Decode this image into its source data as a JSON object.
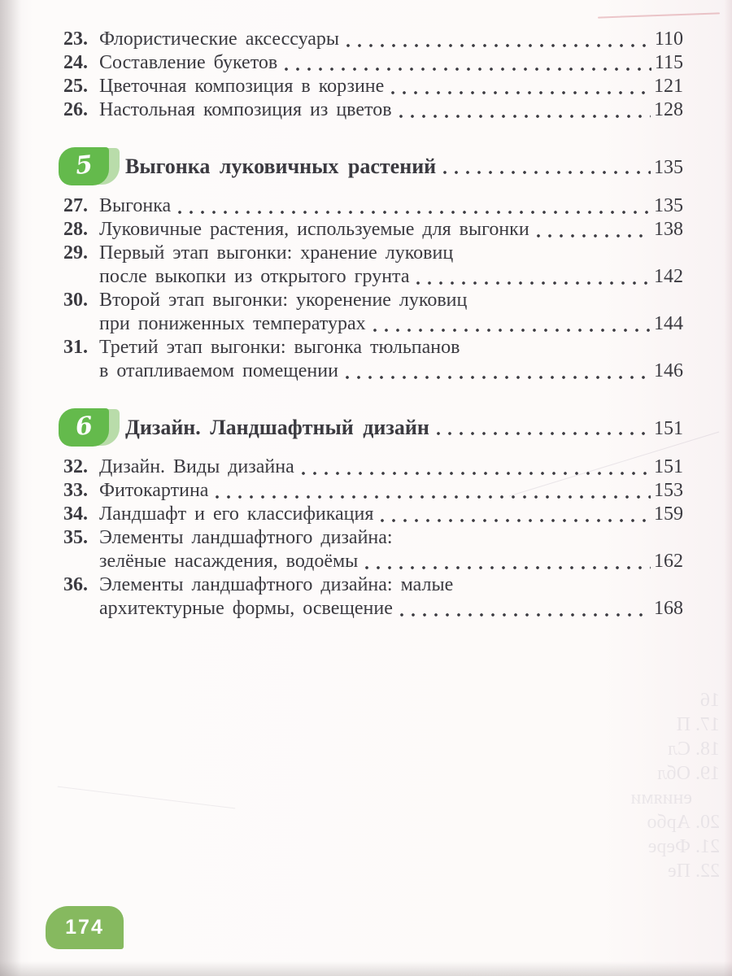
{
  "colors": {
    "section_badge_green": "#64ba4c",
    "section_badge_light_green": "#b9dcaa",
    "footer_badge_green": "#86b95f",
    "text": "#3b3a40"
  },
  "toc": {
    "sections": [
      {
        "header": null,
        "entries": [
          {
            "num": "23.",
            "lines": [
              "Флористические аксессуары"
            ],
            "page": "110"
          },
          {
            "num": "24.",
            "lines": [
              "Составление букетов"
            ],
            "page": "115"
          },
          {
            "num": "25.",
            "lines": [
              "Цветочная композиция в корзине"
            ],
            "page": "121"
          },
          {
            "num": "26.",
            "lines": [
              "Настольная композиция из цветов"
            ],
            "page": "128"
          }
        ]
      },
      {
        "header": {
          "number": "5",
          "title": "Выгонка луковичных растений",
          "page": "135"
        },
        "entries": [
          {
            "num": "27.",
            "lines": [
              "Выгонка"
            ],
            "page": "135"
          },
          {
            "num": "28.",
            "lines": [
              "Луковичные растения, используемые для выгонки"
            ],
            "page": "138"
          },
          {
            "num": "29.",
            "lines": [
              "Первый этап выгонки: хранение луковиц",
              "после выкопки из открытого грунта"
            ],
            "page": "142"
          },
          {
            "num": "30.",
            "lines": [
              "Второй этап выгонки: укоренение луковиц",
              "при пониженных температурах"
            ],
            "page": "144"
          },
          {
            "num": "31.",
            "lines": [
              "Третий этап выгонки: выгонка тюльпанов",
              "в отапливаемом помещении"
            ],
            "page": "146"
          }
        ]
      },
      {
        "header": {
          "number": "6",
          "title": "Дизайн. Ландшафтный дизайн",
          "page": "151"
        },
        "entries": [
          {
            "num": "32.",
            "lines": [
              "Дизайн. Виды дизайна"
            ],
            "page": "151"
          },
          {
            "num": "33.",
            "lines": [
              "Фитокартина"
            ],
            "page": "153"
          },
          {
            "num": "34.",
            "lines": [
              "Ландшафт и его классификация"
            ],
            "page": "159"
          },
          {
            "num": "35.",
            "lines": [
              "Элементы ландшафтного дизайна:",
              "зелёные насаждения, водоёмы"
            ],
            "page": "162"
          },
          {
            "num": "36.",
            "lines": [
              "Элементы ландшафтного дизайна: малые",
              "архитектурные формы, освещение"
            ],
            "page": "168"
          }
        ]
      }
    ]
  },
  "footer": {
    "page_number": "174"
  },
  "artifacts": {
    "bleed_lines": [
      "16",
      "17. П",
      "18. Сл",
      "19. Обл",
      "ениями",
      "20. Арбо",
      "21. Фере",
      "22. Пе"
    ]
  }
}
